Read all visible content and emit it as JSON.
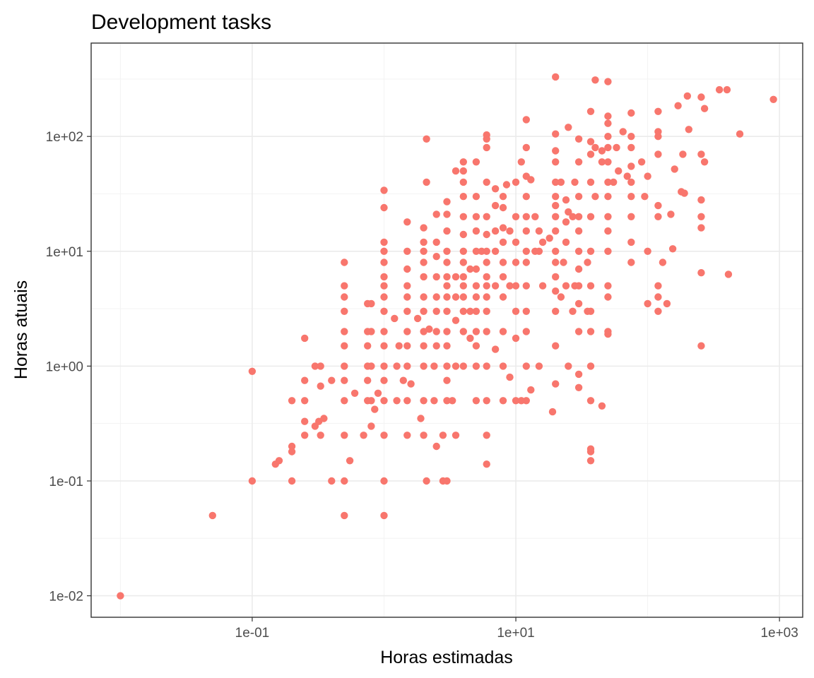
{
  "chart_data": {
    "type": "scatter",
    "title": "Development tasks",
    "xlabel": "Horas estimadas",
    "ylabel": "Horas atuais",
    "x_scale": "log10",
    "y_scale": "log10",
    "xlim": [
      0.006,
      1500
    ],
    "ylim": [
      0.0065,
      650
    ],
    "x_ticks": [
      0.1,
      10,
      1000
    ],
    "x_tick_labels": [
      "1e-01",
      "1e+01",
      "1e+03"
    ],
    "y_ticks": [
      0.01,
      0.1,
      1,
      10,
      100
    ],
    "y_tick_labels": [
      "1e-02",
      "1e-01",
      "1e+00",
      "1e+01",
      "1e+02"
    ],
    "grid": true,
    "legend": "none",
    "point_color": "#f8766d",
    "points": [
      [
        0.01,
        0.01
      ],
      [
        0.05,
        0.05
      ],
      [
        0.1,
        0.1
      ],
      [
        0.1,
        0.9
      ],
      [
        0.15,
        0.14
      ],
      [
        0.16,
        0.15
      ],
      [
        0.2,
        0.1
      ],
      [
        0.2,
        0.2
      ],
      [
        0.2,
        0.18
      ],
      [
        0.2,
        0.5
      ],
      [
        0.25,
        0.25
      ],
      [
        0.25,
        0.33
      ],
      [
        0.25,
        0.5
      ],
      [
        0.25,
        0.75
      ],
      [
        0.25,
        1.75
      ],
      [
        0.3,
        0.3
      ],
      [
        0.3,
        1.0
      ],
      [
        0.32,
        0.33
      ],
      [
        0.33,
        0.25
      ],
      [
        0.33,
        0.67
      ],
      [
        0.33,
        1.0
      ],
      [
        0.35,
        0.35
      ],
      [
        0.4,
        0.1
      ],
      [
        0.4,
        0.75
      ],
      [
        0.5,
        0.05
      ],
      [
        0.5,
        0.1
      ],
      [
        0.5,
        0.25
      ],
      [
        0.5,
        0.5
      ],
      [
        0.5,
        0.75
      ],
      [
        0.5,
        1.0
      ],
      [
        0.5,
        1.5
      ],
      [
        0.5,
        2.0
      ],
      [
        0.5,
        3.0
      ],
      [
        0.5,
        4.0
      ],
      [
        0.5,
        5.0
      ],
      [
        0.5,
        8.0
      ],
      [
        0.55,
        0.15
      ],
      [
        0.6,
        0.58
      ],
      [
        0.7,
        0.25
      ],
      [
        0.75,
        0.5
      ],
      [
        0.75,
        0.75
      ],
      [
        0.75,
        1.0
      ],
      [
        0.75,
        1.5
      ],
      [
        0.75,
        2.0
      ],
      [
        0.75,
        3.5
      ],
      [
        0.8,
        0.3
      ],
      [
        0.8,
        0.5
      ],
      [
        0.8,
        1.0
      ],
      [
        0.8,
        2.0
      ],
      [
        0.8,
        3.5
      ],
      [
        0.85,
        0.42
      ],
      [
        0.9,
        0.58
      ],
      [
        1.0,
        0.05
      ],
      [
        1.0,
        0.1
      ],
      [
        1.0,
        0.25
      ],
      [
        1.0,
        0.5
      ],
      [
        1.0,
        0.75
      ],
      [
        1.0,
        1.0
      ],
      [
        1.0,
        1.5
      ],
      [
        1.0,
        2.0
      ],
      [
        1.0,
        3.0
      ],
      [
        1.0,
        4.0
      ],
      [
        1.0,
        5.0
      ],
      [
        1.0,
        6.0
      ],
      [
        1.0,
        8.0
      ],
      [
        1.0,
        10.0
      ],
      [
        1.0,
        12.0
      ],
      [
        1.0,
        24.0
      ],
      [
        1.0,
        34.0
      ],
      [
        1.2,
        2.6
      ],
      [
        1.25,
        0.5
      ],
      [
        1.25,
        1.0
      ],
      [
        1.3,
        1.5
      ],
      [
        1.4,
        0.75
      ],
      [
        1.5,
        0.25
      ],
      [
        1.5,
        0.5
      ],
      [
        1.5,
        1.0
      ],
      [
        1.5,
        1.5
      ],
      [
        1.5,
        2.0
      ],
      [
        1.5,
        3.0
      ],
      [
        1.5,
        4.0
      ],
      [
        1.5,
        5.0
      ],
      [
        1.5,
        7.0
      ],
      [
        1.5,
        10.0
      ],
      [
        1.5,
        18.0
      ],
      [
        1.6,
        0.7
      ],
      [
        1.8,
        2.6
      ],
      [
        1.9,
        0.35
      ],
      [
        2.0,
        0.25
      ],
      [
        2.0,
        0.5
      ],
      [
        2.0,
        1.0
      ],
      [
        2.0,
        1.5
      ],
      [
        2.0,
        2.0
      ],
      [
        2.0,
        3.0
      ],
      [
        2.0,
        4.0
      ],
      [
        2.0,
        6.0
      ],
      [
        2.0,
        8.0
      ],
      [
        2.0,
        10.0
      ],
      [
        2.0,
        12.0
      ],
      [
        2.0,
        16.0
      ],
      [
        2.1,
        0.1
      ],
      [
        2.1,
        40.0
      ],
      [
        2.1,
        95.0
      ],
      [
        2.2,
        2.1
      ],
      [
        2.4,
        0.5
      ],
      [
        2.4,
        1.0
      ],
      [
        2.5,
        0.2
      ],
      [
        2.5,
        1.5
      ],
      [
        2.5,
        2.0
      ],
      [
        2.5,
        3.0
      ],
      [
        2.5,
        4.0
      ],
      [
        2.5,
        6.0
      ],
      [
        2.5,
        9.0
      ],
      [
        2.5,
        12.0
      ],
      [
        2.5,
        21.0
      ],
      [
        2.8,
        0.1
      ],
      [
        2.8,
        0.25
      ],
      [
        3.0,
        0.1
      ],
      [
        3.0,
        0.5
      ],
      [
        3.0,
        0.75
      ],
      [
        3.0,
        1.0
      ],
      [
        3.0,
        1.5
      ],
      [
        3.0,
        2.0
      ],
      [
        3.0,
        3.0
      ],
      [
        3.0,
        4.0
      ],
      [
        3.0,
        5.0
      ],
      [
        3.0,
        6.0
      ],
      [
        3.0,
        8.0
      ],
      [
        3.0,
        10.0
      ],
      [
        3.0,
        15.0
      ],
      [
        3.0,
        21.0
      ],
      [
        3.0,
        27.0
      ],
      [
        3.3,
        0.5
      ],
      [
        3.5,
        0.25
      ],
      [
        3.5,
        1.0
      ],
      [
        3.5,
        2.5
      ],
      [
        3.5,
        4.0
      ],
      [
        3.5,
        6.0
      ],
      [
        3.5,
        50.0
      ],
      [
        4.0,
        1.0
      ],
      [
        4.0,
        2.0
      ],
      [
        4.0,
        3.0
      ],
      [
        4.0,
        4.0
      ],
      [
        4.0,
        5.0
      ],
      [
        4.0,
        6.0
      ],
      [
        4.0,
        8.0
      ],
      [
        4.0,
        10.0
      ],
      [
        4.0,
        14.0
      ],
      [
        4.0,
        20.0
      ],
      [
        4.0,
        30.0
      ],
      [
        4.0,
        40.0
      ],
      [
        4.0,
        50.0
      ],
      [
        4.0,
        60.0
      ],
      [
        4.5,
        1.75
      ],
      [
        4.5,
        3.0
      ],
      [
        4.5,
        7.0
      ],
      [
        5.0,
        0.5
      ],
      [
        5.0,
        1.0
      ],
      [
        5.0,
        1.5
      ],
      [
        5.0,
        2.0
      ],
      [
        5.0,
        3.0
      ],
      [
        5.0,
        4.0
      ],
      [
        5.0,
        5.0
      ],
      [
        5.0,
        7.0
      ],
      [
        5.0,
        10.0
      ],
      [
        5.0,
        15.0
      ],
      [
        5.0,
        20.0
      ],
      [
        5.0,
        30.0
      ],
      [
        5.0,
        60.0
      ],
      [
        5.5,
        10.0
      ],
      [
        6.0,
        0.14
      ],
      [
        6.0,
        0.25
      ],
      [
        6.0,
        0.5
      ],
      [
        6.0,
        1.0
      ],
      [
        6.0,
        2.0
      ],
      [
        6.0,
        3.0
      ],
      [
        6.0,
        4.0
      ],
      [
        6.0,
        5.0
      ],
      [
        6.0,
        6.0
      ],
      [
        6.0,
        8.0
      ],
      [
        6.0,
        10.0
      ],
      [
        6.0,
        14.0
      ],
      [
        6.0,
        20.0
      ],
      [
        6.0,
        40.0
      ],
      [
        6.0,
        80.0
      ],
      [
        6.0,
        95.0
      ],
      [
        6.0,
        103.0
      ],
      [
        7.0,
        1.4
      ],
      [
        7.0,
        5.0
      ],
      [
        7.0,
        10.0
      ],
      [
        7.0,
        15.0
      ],
      [
        7.0,
        25.0
      ],
      [
        7.0,
        35.0
      ],
      [
        8.0,
        0.5
      ],
      [
        8.0,
        1.0
      ],
      [
        8.0,
        2.0
      ],
      [
        8.0,
        4.0
      ],
      [
        8.0,
        6.0
      ],
      [
        8.0,
        8.0
      ],
      [
        8.0,
        12.0
      ],
      [
        8.0,
        16.0
      ],
      [
        8.0,
        24.0
      ],
      [
        8.0,
        30.0
      ],
      [
        8.5,
        38.0
      ],
      [
        9.0,
        0.8
      ],
      [
        9.0,
        5.0
      ],
      [
        9.0,
        15.0
      ],
      [
        10.0,
        0.5
      ],
      [
        10.0,
        1.75
      ],
      [
        10.0,
        3.0
      ],
      [
        10.0,
        5.0
      ],
      [
        10.0,
        8.0
      ],
      [
        10.0,
        12.0
      ],
      [
        10.0,
        20.0
      ],
      [
        10.0,
        40.0
      ],
      [
        11.0,
        0.5
      ],
      [
        11.0,
        60.0
      ],
      [
        12.0,
        0.5
      ],
      [
        12.0,
        1.0
      ],
      [
        12.0,
        2.0
      ],
      [
        12.0,
        3.0
      ],
      [
        12.0,
        5.0
      ],
      [
        12.0,
        8.0
      ],
      [
        12.0,
        10.0
      ],
      [
        12.0,
        15.0
      ],
      [
        12.0,
        20.0
      ],
      [
        12.0,
        30.0
      ],
      [
        12.0,
        45.0
      ],
      [
        12.0,
        80.0
      ],
      [
        12.0,
        140.0
      ],
      [
        13.0,
        0.62
      ],
      [
        13.0,
        42.0
      ],
      [
        14.0,
        10.0
      ],
      [
        14.0,
        20.0
      ],
      [
        15.0,
        1.0
      ],
      [
        15.0,
        10.0
      ],
      [
        15.0,
        15.0
      ],
      [
        16.0,
        5.0
      ],
      [
        16.0,
        12.0
      ],
      [
        18.0,
        13.0
      ],
      [
        19.0,
        0.4
      ],
      [
        20.0,
        0.7
      ],
      [
        20.0,
        1.5
      ],
      [
        20.0,
        3.0
      ],
      [
        20.0,
        4.5
      ],
      [
        20.0,
        6.0
      ],
      [
        20.0,
        8.0
      ],
      [
        20.0,
        10.0
      ],
      [
        20.0,
        15.0
      ],
      [
        20.0,
        20.0
      ],
      [
        20.0,
        25.0
      ],
      [
        20.0,
        30.0
      ],
      [
        20.0,
        40.0
      ],
      [
        20.0,
        60.0
      ],
      [
        20.0,
        75.0
      ],
      [
        20.0,
        105.0
      ],
      [
        20.0,
        330.0
      ],
      [
        22.0,
        4.0
      ],
      [
        22.0,
        40.0
      ],
      [
        23.0,
        8.0
      ],
      [
        24.0,
        5.0
      ],
      [
        24.0,
        12.0
      ],
      [
        24.0,
        18.0
      ],
      [
        24.0,
        28.0
      ],
      [
        25.0,
        1.0
      ],
      [
        25.0,
        22.0
      ],
      [
        25.0,
        120.0
      ],
      [
        27.0,
        3.0
      ],
      [
        27.0,
        20.0
      ],
      [
        28.0,
        5.0
      ],
      [
        28.0,
        40.0
      ],
      [
        30.0,
        0.65
      ],
      [
        30.0,
        0.85
      ],
      [
        30.0,
        2.0
      ],
      [
        30.0,
        3.5
      ],
      [
        30.0,
        5.0
      ],
      [
        30.0,
        7.0
      ],
      [
        30.0,
        10.0
      ],
      [
        30.0,
        15.0
      ],
      [
        30.0,
        20.0
      ],
      [
        30.0,
        30.0
      ],
      [
        30.0,
        60.0
      ],
      [
        30.0,
        95.0
      ],
      [
        35.0,
        3.0
      ],
      [
        35.0,
        8.0
      ],
      [
        37.0,
        0.5
      ],
      [
        37.0,
        0.15
      ],
      [
        37.0,
        0.18
      ],
      [
        37.0,
        0.19
      ],
      [
        37.0,
        1.0
      ],
      [
        37.0,
        2.0
      ],
      [
        37.0,
        3.0
      ],
      [
        37.0,
        5.0
      ],
      [
        37.0,
        10.0
      ],
      [
        37.0,
        20.0
      ],
      [
        37.0,
        40.0
      ],
      [
        37.0,
        70.0
      ],
      [
        37.0,
        90.0
      ],
      [
        37.0,
        165.0
      ],
      [
        40.0,
        30.0
      ],
      [
        40.0,
        80.0
      ],
      [
        40.0,
        310.0
      ],
      [
        45.0,
        60.0
      ],
      [
        45.0,
        0.45
      ],
      [
        45.0,
        75.0
      ],
      [
        50.0,
        1.9
      ],
      [
        50.0,
        2.0
      ],
      [
        50.0,
        4.0
      ],
      [
        50.0,
        5.0
      ],
      [
        50.0,
        10.0
      ],
      [
        50.0,
        15.0
      ],
      [
        50.0,
        20.0
      ],
      [
        50.0,
        30.0
      ],
      [
        50.0,
        40.0
      ],
      [
        50.0,
        60.0
      ],
      [
        50.0,
        80.0
      ],
      [
        50.0,
        100.0
      ],
      [
        50.0,
        130.0
      ],
      [
        50.0,
        150.0
      ],
      [
        50.0,
        300.0
      ],
      [
        55.0,
        40.0
      ],
      [
        58.0,
        80.0
      ],
      [
        60.0,
        50.0
      ],
      [
        65.0,
        110.0
      ],
      [
        70.0,
        45.0
      ],
      [
        75.0,
        8.0
      ],
      [
        75.0,
        12.0
      ],
      [
        75.0,
        20.0
      ],
      [
        75.0,
        30.0
      ],
      [
        75.0,
        40.0
      ],
      [
        75.0,
        55.0
      ],
      [
        75.0,
        80.0
      ],
      [
        75.0,
        100.0
      ],
      [
        75.0,
        160.0
      ],
      [
        90.0,
        60.0
      ],
      [
        95.0,
        30.0
      ],
      [
        100.0,
        3.5
      ],
      [
        100.0,
        10.0
      ],
      [
        100.0,
        45.0
      ],
      [
        120.0,
        3.0
      ],
      [
        120.0,
        4.0
      ],
      [
        120.0,
        5.0
      ],
      [
        120.0,
        20.0
      ],
      [
        120.0,
        25.0
      ],
      [
        120.0,
        70.0
      ],
      [
        120.0,
        100.0
      ],
      [
        120.0,
        110.0
      ],
      [
        120.0,
        165.0
      ],
      [
        130.0,
        8.0
      ],
      [
        140.0,
        3.5
      ],
      [
        150.0,
        21.0
      ],
      [
        155.0,
        10.5
      ],
      [
        160.0,
        52.0
      ],
      [
        170.0,
        185.0
      ],
      [
        180.0,
        33.0
      ],
      [
        185.0,
        70.0
      ],
      [
        190.0,
        32.0
      ],
      [
        200.0,
        225.0
      ],
      [
        205.0,
        115.0
      ],
      [
        255.0,
        1.5
      ],
      [
        255.0,
        6.5
      ],
      [
        255.0,
        16.0
      ],
      [
        255.0,
        20.0
      ],
      [
        255.0,
        28.0
      ],
      [
        255.0,
        70.0
      ],
      [
        255.0,
        220.0
      ],
      [
        270.0,
        60.0
      ],
      [
        270.0,
        175.0
      ],
      [
        350.0,
        255.0
      ],
      [
        400.0,
        255.0
      ],
      [
        410.0,
        6.3
      ],
      [
        500.0,
        105.0
      ],
      [
        900.0,
        210.0
      ]
    ]
  }
}
